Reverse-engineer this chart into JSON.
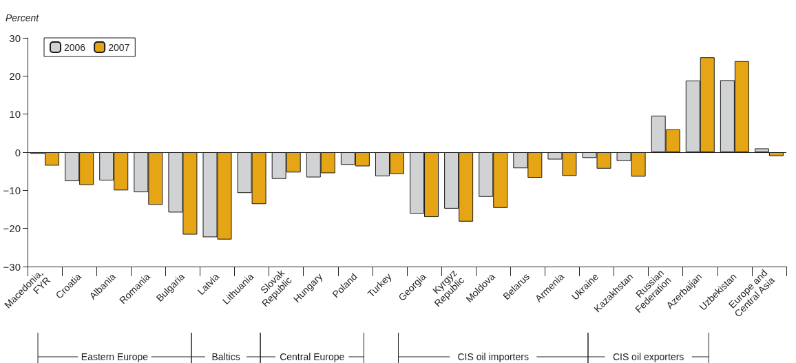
{
  "chart_data": {
    "type": "bar",
    "ylabel": "Percent",
    "categories": [
      "Macedonia,\nFYR",
      "Croatia",
      "Albania",
      "Romania",
      "Bulgaria",
      "Latvia",
      "Lithuania",
      "Slovak\nRepublic",
      "Hungary",
      "Poland",
      "Turkey",
      "Georgia",
      "Kyrgyz\nRepublic",
      "Moldova",
      "Belarus",
      "Armenia",
      "Ukraine",
      "Kazakhstan",
      "Russian\nFederation",
      "Azerbaijan",
      "Uzbekistan",
      "Europe and\nCentral Asia"
    ],
    "series": [
      {
        "name": "2006",
        "color": "#d1d2d4",
        "values": [
          -0.4,
          -7.6,
          -7.4,
          -10.5,
          -15.8,
          -22.3,
          -10.7,
          -7.0,
          -6.6,
          -3.3,
          -6.3,
          -16.1,
          -14.8,
          -11.7,
          -4.2,
          -1.9,
          -1.5,
          -2.3,
          9.6,
          18.8,
          18.9,
          1.0
        ]
      },
      {
        "name": "2007",
        "color": "#e6a514",
        "values": [
          -3.5,
          -8.6,
          -10.0,
          -13.8,
          -21.6,
          -22.9,
          -13.6,
          -5.3,
          -5.5,
          -3.7,
          -5.7,
          -17.0,
          -18.2,
          -14.6,
          -6.7,
          -6.2,
          -4.3,
          -6.4,
          6.0,
          24.9,
          23.9,
          -1.0
        ]
      }
    ],
    "ylim": [
      -30,
      30
    ],
    "yticks": [
      -30,
      -20,
      -10,
      0,
      10,
      20,
      30
    ],
    "grid": false,
    "legend": "top left",
    "ref_lines": [
      {
        "axis": "y",
        "value": 0,
        "color": "#222222"
      }
    ],
    "annotations": [
      "Eastern Europe",
      "Baltics",
      "Central Europe",
      "CIS oil importers",
      "CIS oil exporters"
    ]
  }
}
